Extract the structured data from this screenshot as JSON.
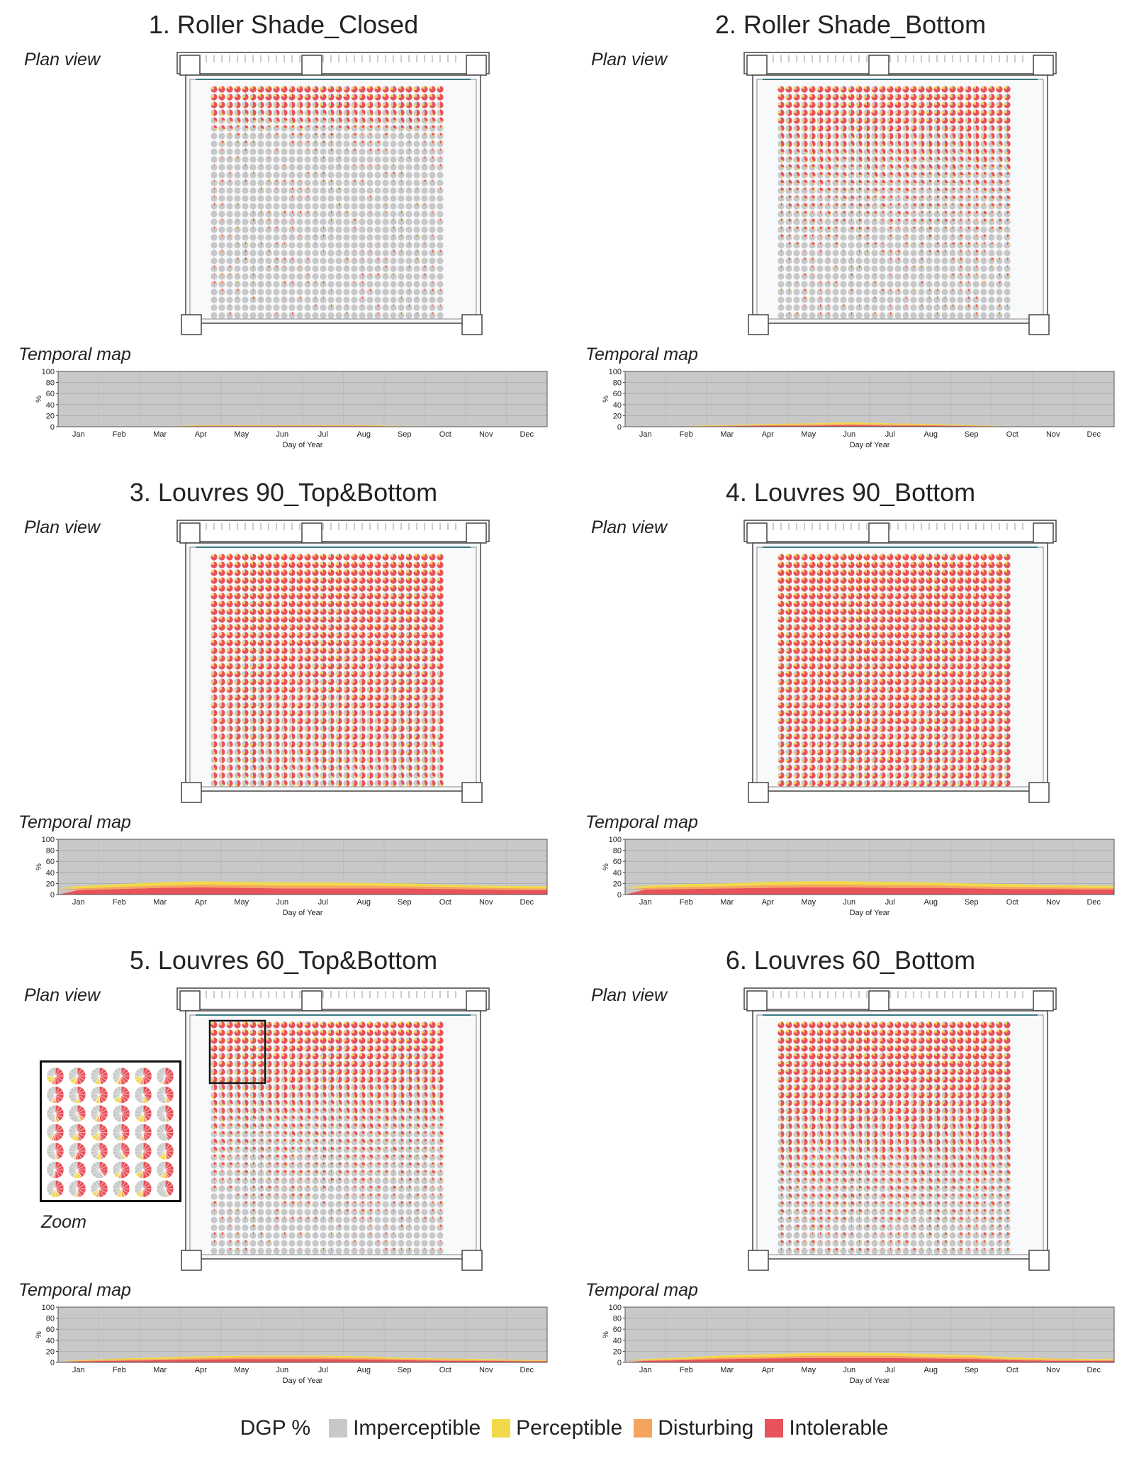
{
  "legend": {
    "title": "DGP %",
    "items": [
      {
        "label": "Imperceptible",
        "color": "#c8c8c8"
      },
      {
        "label": "Perceptible",
        "color": "#f2d94a"
      },
      {
        "label": "Disturbing",
        "color": "#f5a460"
      },
      {
        "label": "Intolerable",
        "color": "#e8525a"
      }
    ]
  },
  "labels": {
    "plan": "Plan view",
    "temporal": "Temporal map",
    "zoom": "Zoom"
  },
  "chart_data": [
    {
      "type": "area",
      "title": "1. Roller Shade_Closed",
      "xlabel": "Day of Year",
      "ylabel": "%",
      "ylim": [
        0,
        100
      ],
      "yticks": [
        0,
        20,
        40,
        60,
        80,
        100
      ],
      "months": [
        "Jan",
        "Feb",
        "Mar",
        "Apr",
        "May",
        "Jun",
        "Jul",
        "Aug",
        "Sep",
        "Oct",
        "Nov",
        "Dec"
      ],
      "series": [
        {
          "name": "Intolerable",
          "values": [
            0,
            0,
            0,
            1,
            1,
            1,
            1,
            1,
            0,
            0,
            0,
            0
          ]
        },
        {
          "name": "Disturbing",
          "values": [
            0,
            0,
            0,
            1,
            1,
            1,
            1,
            1,
            0,
            0,
            0,
            0
          ]
        },
        {
          "name": "Perceptible",
          "values": [
            0,
            0,
            0,
            1,
            1,
            1,
            1,
            1,
            1,
            0,
            0,
            0
          ]
        }
      ],
      "plan_glare": [
        0.95,
        0.9,
        0.75,
        0.55,
        0.4,
        0.25,
        0.1,
        0.05,
        0.02,
        0,
        0,
        0,
        0,
        0,
        0,
        0,
        0,
        0,
        0,
        0,
        0,
        0,
        0,
        0,
        0,
        0,
        0,
        0,
        0,
        0
      ]
    },
    {
      "type": "area",
      "title": "2. Roller Shade_Bottom",
      "xlabel": "Day of Year",
      "ylabel": "%",
      "ylim": [
        0,
        100
      ],
      "yticks": [
        0,
        20,
        40,
        60,
        80,
        100
      ],
      "months": [
        "Jan",
        "Feb",
        "Mar",
        "Apr",
        "May",
        "Jun",
        "Jul",
        "Aug",
        "Sep",
        "Oct",
        "Nov",
        "Dec"
      ],
      "series": [
        {
          "name": "Intolerable",
          "values": [
            0,
            0,
            1,
            2,
            2,
            3,
            2,
            2,
            1,
            0,
            0,
            0
          ]
        },
        {
          "name": "Disturbing",
          "values": [
            0,
            0,
            1,
            1,
            2,
            2,
            2,
            1,
            1,
            0,
            0,
            0
          ]
        },
        {
          "name": "Perceptible",
          "values": [
            0,
            1,
            1,
            2,
            2,
            3,
            2,
            2,
            1,
            0,
            0,
            0
          ]
        }
      ],
      "plan_glare": [
        0.95,
        0.9,
        0.85,
        0.8,
        0.75,
        0.65,
        0.55,
        0.5,
        0.45,
        0.4,
        0.35,
        0.3,
        0.3,
        0.25,
        0.22,
        0.2,
        0.18,
        0.15,
        0.12,
        0.1,
        0.08,
        0.06,
        0.05,
        0.04,
        0.03,
        0.02,
        0.02,
        0.01,
        0.01,
        0.01
      ]
    },
    {
      "type": "area",
      "title": "3. Louvres 90_Top&Bottom",
      "xlabel": "Day of Year",
      "ylabel": "%",
      "ylim": [
        0,
        100
      ],
      "yticks": [
        0,
        20,
        40,
        60,
        80,
        100
      ],
      "months": [
        "Jan",
        "Feb",
        "Mar",
        "Apr",
        "May",
        "Jun",
        "Jul",
        "Aug",
        "Sep",
        "Oct",
        "Nov",
        "Dec"
      ],
      "series": [
        {
          "name": "Intolerable",
          "values": [
            8,
            10,
            12,
            13,
            12,
            11,
            11,
            11,
            11,
            10,
            9,
            8
          ]
        },
        {
          "name": "Disturbing",
          "values": [
            3,
            4,
            4,
            5,
            5,
            5,
            5,
            5,
            4,
            4,
            3,
            3
          ]
        },
        {
          "name": "Perceptible",
          "values": [
            4,
            5,
            6,
            6,
            6,
            6,
            6,
            5,
            5,
            4,
            4,
            4
          ]
        }
      ],
      "plan_glare": [
        1,
        1,
        1,
        0.98,
        0.97,
        0.96,
        0.95,
        0.94,
        0.93,
        0.92,
        0.9,
        0.88,
        0.86,
        0.84,
        0.82,
        0.8,
        0.78,
        0.76,
        0.74,
        0.72,
        0.7,
        0.68,
        0.66,
        0.64,
        0.62,
        0.6,
        0.58,
        0.56,
        0.54,
        0.52
      ]
    },
    {
      "type": "area",
      "title": "4. Louvres 90_Bottom",
      "xlabel": "Day of Year",
      "ylabel": "%",
      "ylim": [
        0,
        100
      ],
      "yticks": [
        0,
        20,
        40,
        60,
        80,
        100
      ],
      "months": [
        "Jan",
        "Feb",
        "Mar",
        "Apr",
        "May",
        "Jun",
        "Jul",
        "Aug",
        "Sep",
        "Oct",
        "Nov",
        "Dec"
      ],
      "series": [
        {
          "name": "Intolerable",
          "values": [
            9,
            10,
            11,
            12,
            13,
            13,
            12,
            12,
            11,
            10,
            10,
            9
          ]
        },
        {
          "name": "Disturbing",
          "values": [
            3,
            4,
            4,
            5,
            5,
            5,
            5,
            5,
            4,
            4,
            3,
            3
          ]
        },
        {
          "name": "Perceptible",
          "values": [
            4,
            5,
            5,
            6,
            6,
            6,
            6,
            5,
            5,
            5,
            4,
            4
          ]
        }
      ],
      "plan_glare": [
        1,
        1,
        1,
        0.99,
        0.98,
        0.97,
        0.96,
        0.95,
        0.94,
        0.93,
        0.92,
        0.91,
        0.9,
        0.89,
        0.88,
        0.87,
        0.86,
        0.85,
        0.84,
        0.83,
        0.82,
        0.81,
        0.8,
        0.79,
        0.78,
        0.77,
        0.76,
        0.75,
        0.74,
        0.73
      ]
    },
    {
      "type": "area",
      "title": "5. Louvres 60_Top&Bottom",
      "xlabel": "Day of Year",
      "ylabel": "%",
      "ylim": [
        0,
        100
      ],
      "yticks": [
        0,
        20,
        40,
        60,
        80,
        100
      ],
      "months": [
        "Jan",
        "Feb",
        "Mar",
        "Apr",
        "May",
        "Jun",
        "Jul",
        "Aug",
        "Sep",
        "Oct",
        "Nov",
        "Dec"
      ],
      "series": [
        {
          "name": "Intolerable",
          "values": [
            2,
            3,
            4,
            5,
            6,
            6,
            6,
            5,
            4,
            3,
            3,
            2
          ]
        },
        {
          "name": "Disturbing",
          "values": [
            1,
            2,
            2,
            3,
            3,
            3,
            3,
            3,
            2,
            2,
            1,
            1
          ]
        },
        {
          "name": "Perceptible",
          "values": [
            1,
            2,
            3,
            3,
            3,
            3,
            3,
            3,
            2,
            2,
            2,
            1
          ]
        }
      ],
      "plan_glare": [
        0.98,
        0.95,
        0.9,
        0.85,
        0.8,
        0.75,
        0.7,
        0.65,
        0.6,
        0.55,
        0.5,
        0.45,
        0.4,
        0.35,
        0.3,
        0.28,
        0.25,
        0.22,
        0.2,
        0.18,
        0.15,
        0.13,
        0.1,
        0.08,
        0.06,
        0.05,
        0.04,
        0.03,
        0.02,
        0.02
      ],
      "zoom": true
    },
    {
      "type": "area",
      "title": "6. Louvres 60_Bottom",
      "xlabel": "Day of Year",
      "ylabel": "%",
      "ylim": [
        0,
        100
      ],
      "yticks": [
        0,
        20,
        40,
        60,
        80,
        100
      ],
      "months": [
        "Jan",
        "Feb",
        "Mar",
        "Apr",
        "May",
        "Jun",
        "Jul",
        "Aug",
        "Sep",
        "Oct",
        "Nov",
        "Dec"
      ],
      "series": [
        {
          "name": "Intolerable",
          "values": [
            3,
            4,
            6,
            7,
            8,
            8,
            8,
            7,
            6,
            4,
            3,
            3
          ]
        },
        {
          "name": "Disturbing",
          "values": [
            1,
            2,
            3,
            3,
            4,
            4,
            4,
            3,
            3,
            2,
            2,
            1
          ]
        },
        {
          "name": "Perceptible",
          "values": [
            2,
            3,
            4,
            5,
            5,
            6,
            5,
            5,
            4,
            3,
            2,
            2
          ]
        }
      ],
      "plan_glare": [
        1,
        0.98,
        0.96,
        0.94,
        0.92,
        0.9,
        0.87,
        0.84,
        0.8,
        0.76,
        0.72,
        0.68,
        0.64,
        0.6,
        0.56,
        0.52,
        0.48,
        0.44,
        0.4,
        0.36,
        0.33,
        0.3,
        0.27,
        0.24,
        0.21,
        0.18,
        0.16,
        0.14,
        0.12,
        0.1
      ]
    }
  ]
}
